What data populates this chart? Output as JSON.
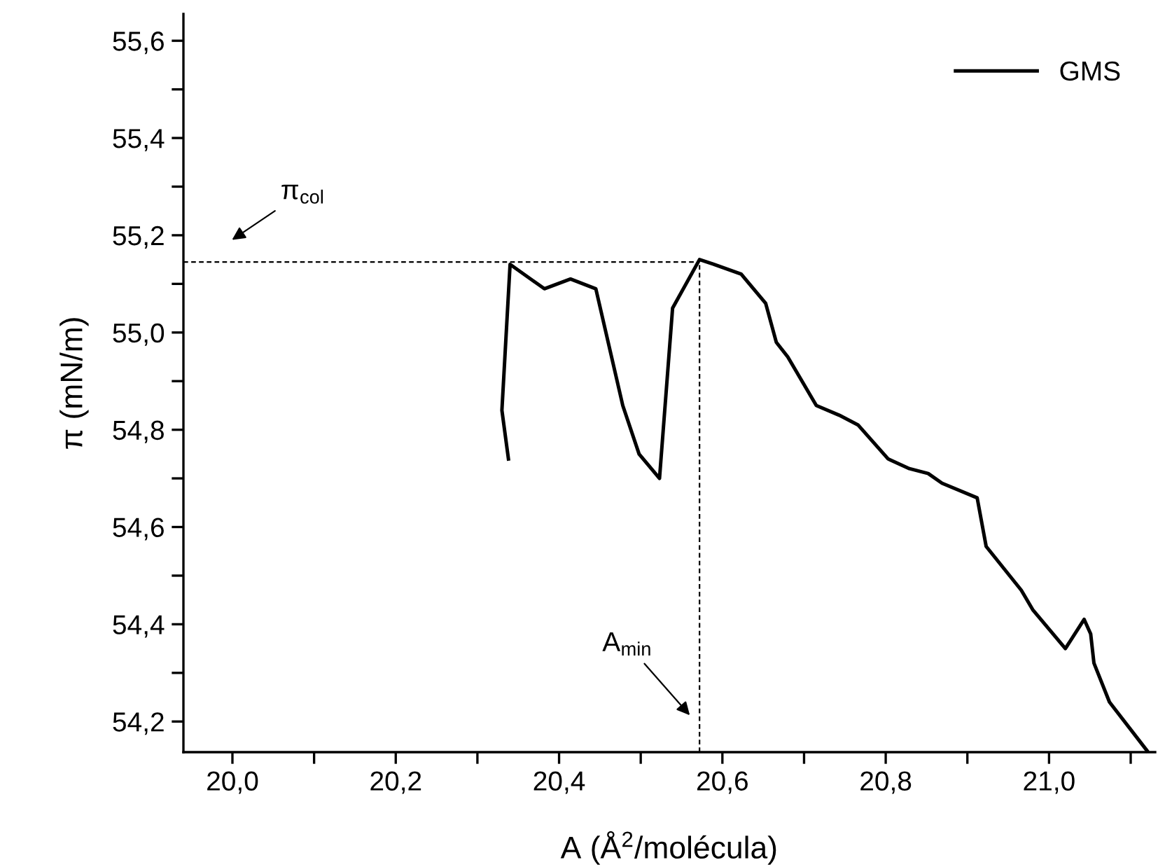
{
  "chart_data": {
    "type": "line",
    "xlabel": "A (Å$^{2}$/molécula)",
    "ylabel": "π (mN/m)",
    "xlim": [
      19.94,
      21.13
    ],
    "ylim": [
      54.137,
      55.655
    ],
    "xticks": [
      {
        "value": 20.0,
        "label": "20,0"
      },
      {
        "value": 20.1,
        "label": null
      },
      {
        "value": 20.2,
        "label": "20,2"
      },
      {
        "value": 20.3,
        "label": null
      },
      {
        "value": 20.4,
        "label": "20,4"
      },
      {
        "value": 20.5,
        "label": null
      },
      {
        "value": 20.6,
        "label": "20,6"
      },
      {
        "value": 20.7,
        "label": null
      },
      {
        "value": 20.8,
        "label": "20,8"
      },
      {
        "value": 20.9,
        "label": null
      },
      {
        "value": 21.0,
        "label": "21,0"
      },
      {
        "value": 21.1,
        "label": null
      }
    ],
    "yticks": [
      {
        "value": 54.2,
        "label": "54,2"
      },
      {
        "value": 54.3,
        "label": null
      },
      {
        "value": 54.4,
        "label": "54,4"
      },
      {
        "value": 54.5,
        "label": null
      },
      {
        "value": 54.6,
        "label": "54,6"
      },
      {
        "value": 54.7,
        "label": null
      },
      {
        "value": 54.8,
        "label": "54,8"
      },
      {
        "value": 54.9,
        "label": null
      },
      {
        "value": 55.0,
        "label": "55,0"
      },
      {
        "value": 55.1,
        "label": null
      },
      {
        "value": 55.2,
        "label": "55,2"
      },
      {
        "value": 55.3,
        "label": null
      },
      {
        "value": 55.4,
        "label": "55,4"
      },
      {
        "value": 55.5,
        "label": null
      },
      {
        "value": 55.6,
        "label": "55,6"
      }
    ],
    "grid": false,
    "legend": "top right",
    "line_style": "solid",
    "marker": "none",
    "series": [
      {
        "name": "GMS",
        "color": "#000000",
        "x": [
          20.338,
          20.33,
          20.34,
          20.382,
          20.414,
          20.445,
          20.478,
          20.498,
          20.523,
          20.539,
          20.572,
          20.59,
          20.623,
          20.653,
          20.666,
          20.68,
          20.715,
          20.743,
          20.766,
          20.803,
          20.829,
          20.852,
          20.869,
          20.912,
          20.923,
          20.966,
          20.98,
          21.02,
          21.043,
          21.051,
          21.055,
          21.074,
          21.12
        ],
        "values": [
          54.74,
          54.84,
          55.14,
          55.09,
          55.11,
          55.09,
          54.85,
          54.75,
          54.7,
          55.05,
          55.15,
          55.14,
          55.12,
          55.06,
          54.98,
          54.95,
          54.85,
          54.83,
          54.81,
          54.74,
          54.72,
          54.71,
          54.69,
          54.66,
          54.56,
          54.47,
          54.43,
          54.35,
          54.41,
          54.38,
          54.32,
          54.24,
          54.14
        ]
      }
    ],
    "ref_lines": [
      {
        "axis": "y",
        "value": 55.145,
        "line_style": "dashed",
        "color": "#000000",
        "label": "π$_{col}$"
      },
      {
        "axis": "x",
        "value": 20.572,
        "line_style": "dashed",
        "color": "#000000",
        "label": "A$_{min}$"
      }
    ]
  }
}
